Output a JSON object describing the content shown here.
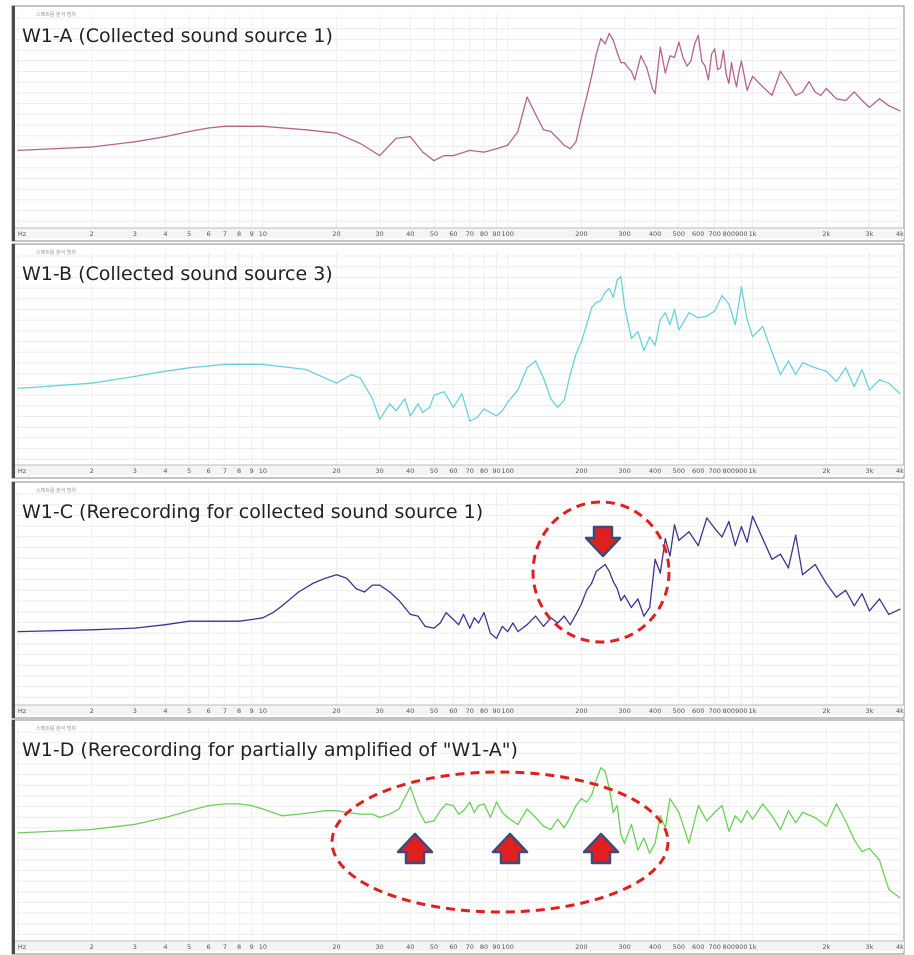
{
  "chart_data": [
    {
      "type": "line",
      "title": "W1-A (Collected sound source 1)",
      "corner_label": "스펙트럼 분석 범위",
      "x_scale": "log",
      "x_unit_label": "Hz",
      "x_ticks": [
        "Hz",
        "2",
        "3",
        "4",
        "5",
        "6",
        "7",
        "8",
        "9",
        "10",
        "20",
        "30",
        "40",
        "50",
        "60",
        "70",
        "80",
        "90",
        "100",
        "200",
        "300",
        "400",
        "500",
        "600",
        "700",
        "800",
        "900",
        "1k",
        "2k",
        "3k",
        "4k"
      ],
      "x_tick_values": [
        1,
        2,
        3,
        4,
        5,
        6,
        7,
        8,
        9,
        10,
        20,
        30,
        40,
        50,
        60,
        70,
        80,
        90,
        100,
        200,
        300,
        400,
        500,
        600,
        700,
        800,
        900,
        1000,
        2000,
        3000,
        4000
      ],
      "xlim": [
        1,
        4000
      ],
      "ylim": [
        -10,
        0
      ],
      "grid": true,
      "color": "#b5648e",
      "series": [
        {
          "x": [
            1,
            2,
            3,
            4,
            5,
            6,
            7,
            8,
            10,
            15,
            20,
            25,
            30,
            35,
            40,
            45,
            50,
            55,
            60,
            70,
            80,
            90,
            95,
            100,
            110,
            120,
            130,
            140,
            150,
            160,
            170,
            180,
            190,
            200,
            210,
            220,
            230,
            240,
            250,
            260,
            270,
            280,
            290,
            300,
            310,
            320,
            330,
            350,
            370,
            390,
            400,
            420,
            440,
            460,
            480,
            500,
            520,
            540,
            560,
            580,
            600,
            620,
            640,
            660,
            680,
            700,
            720,
            740,
            760,
            780,
            800,
            820,
            840,
            860,
            880,
            900,
            950,
            1000,
            1100,
            1200,
            1300,
            1400,
            1500,
            1600,
            1700,
            1800,
            1900,
            2000,
            2200,
            2400,
            2600,
            2800,
            3000,
            3300,
            3600,
            4000
          ],
          "y": [
            -7.0,
            -6.8,
            -6.5,
            -6.2,
            -5.9,
            -5.7,
            -5.6,
            -5.6,
            -5.6,
            -5.8,
            -6.0,
            -6.6,
            -7.3,
            -6.3,
            -6.2,
            -7.1,
            -7.6,
            -7.3,
            -7.3,
            -7.0,
            -7.1,
            -6.9,
            -6.8,
            -6.7,
            -5.9,
            -3.9,
            -4.9,
            -5.8,
            -5.9,
            -6.3,
            -6.7,
            -6.9,
            -6.5,
            -5.1,
            -3.9,
            -2.7,
            -1.4,
            -0.5,
            -0.8,
            -0.2,
            -0.6,
            -1.3,
            -1.9,
            -1.9,
            -2.2,
            -2.4,
            -2.9,
            -1.5,
            -2.2,
            -3.4,
            -3.7,
            -1.0,
            -2.5,
            -1.5,
            -1.6,
            -0.7,
            -1.6,
            -2.1,
            -1.8,
            -0.8,
            -0.3,
            -1.8,
            -2.1,
            -2.9,
            -1.4,
            -1.1,
            -2.3,
            -2.2,
            -1.2,
            -2.6,
            -3.1,
            -1.9,
            -2.7,
            -3.3,
            -2.4,
            -1.8,
            -3.5,
            -2.7,
            -3.3,
            -3.8,
            -2.4,
            -3.1,
            -3.8,
            -3.6,
            -3.0,
            -3.6,
            -3.8,
            -3.4,
            -4.0,
            -4.1,
            -3.6,
            -4.1,
            -4.5,
            -4.0,
            -4.4,
            -4.7
          ]
        }
      ]
    },
    {
      "type": "line",
      "title": "W1-B (Collected sound source 3)",
      "corner_label": "스펙트럼 분석 범위",
      "x_scale": "log",
      "x_unit_label": "Hz",
      "x_ticks": [
        "Hz",
        "2",
        "3",
        "4",
        "5",
        "6",
        "7",
        "8",
        "9",
        "10",
        "20",
        "30",
        "40",
        "50",
        "60",
        "70",
        "80",
        "90",
        "100",
        "200",
        "300",
        "400",
        "500",
        "600",
        "700",
        "800",
        "900",
        "1k",
        "2k",
        "3k",
        "4k"
      ],
      "x_tick_values": [
        1,
        2,
        3,
        4,
        5,
        6,
        7,
        8,
        9,
        10,
        20,
        30,
        40,
        50,
        60,
        70,
        80,
        90,
        100,
        200,
        300,
        400,
        500,
        600,
        700,
        800,
        900,
        1000,
        2000,
        3000,
        4000
      ],
      "xlim": [
        1,
        4000
      ],
      "ylim": [
        -10,
        0
      ],
      "grid": true,
      "color": "#6ad1d9",
      "series": [
        {
          "x": [
            1,
            2,
            3,
            4,
            5,
            6,
            7,
            8,
            10,
            15,
            20,
            23,
            25,
            28,
            30,
            33,
            35,
            38,
            40,
            43,
            45,
            48,
            50,
            55,
            60,
            65,
            70,
            75,
            80,
            90,
            95,
            100,
            110,
            120,
            130,
            140,
            150,
            160,
            170,
            180,
            190,
            200,
            210,
            220,
            230,
            240,
            250,
            260,
            270,
            280,
            290,
            300,
            320,
            340,
            360,
            380,
            400,
            420,
            440,
            460,
            480,
            500,
            550,
            600,
            650,
            700,
            750,
            800,
            850,
            900,
            950,
            1000,
            1100,
            1200,
            1300,
            1400,
            1500,
            1600,
            1800,
            2000,
            2200,
            2400,
            2600,
            2800,
            3000,
            3300,
            3600,
            4000
          ],
          "y": [
            -7.0,
            -6.7,
            -6.3,
            -6.0,
            -5.8,
            -5.7,
            -5.6,
            -5.6,
            -5.6,
            -5.9,
            -6.7,
            -6.2,
            -6.4,
            -7.6,
            -8.8,
            -7.9,
            -8.3,
            -7.6,
            -8.6,
            -7.9,
            -8.4,
            -8.1,
            -7.4,
            -7.2,
            -8.1,
            -7.3,
            -8.9,
            -8.7,
            -8.2,
            -8.6,
            -8.3,
            -7.8,
            -7.1,
            -5.8,
            -5.4,
            -6.4,
            -7.6,
            -8.1,
            -7.7,
            -6.2,
            -5.0,
            -4.3,
            -3.3,
            -2.3,
            -2.0,
            -1.9,
            -1.4,
            -1.2,
            -1.7,
            -0.7,
            -0.5,
            -2.2,
            -4.1,
            -3.7,
            -4.8,
            -4.0,
            -4.5,
            -3.0,
            -2.6,
            -3.3,
            -2.4,
            -3.6,
            -2.6,
            -2.9,
            -2.8,
            -2.5,
            -1.6,
            -2.1,
            -3.3,
            -1.1,
            -3.0,
            -4.0,
            -3.4,
            -4.9,
            -6.2,
            -5.4,
            -6.2,
            -5.5,
            -5.8,
            -6.0,
            -6.6,
            -5.8,
            -6.9,
            -5.9,
            -7.1,
            -6.5,
            -6.7,
            -7.3
          ]
        }
      ]
    },
    {
      "type": "line",
      "title": "W1-C (Rerecording for collected sound source 1)",
      "corner_label": "스펙트럼 분석 범위",
      "x_scale": "log",
      "x_unit_label": "Hz",
      "x_ticks": [
        "Hz",
        "2",
        "3",
        "4",
        "5",
        "6",
        "7",
        "8",
        "9",
        "10",
        "20",
        "30",
        "40",
        "50",
        "60",
        "70",
        "80",
        "90",
        "100",
        "200",
        "300",
        "400",
        "500",
        "600",
        "700",
        "800",
        "900",
        "1k",
        "2k",
        "3k",
        "4k"
      ],
      "x_tick_values": [
        1,
        2,
        3,
        4,
        5,
        6,
        7,
        8,
        9,
        10,
        20,
        30,
        40,
        50,
        60,
        70,
        80,
        90,
        100,
        200,
        300,
        400,
        500,
        600,
        700,
        800,
        900,
        1000,
        2000,
        3000,
        4000
      ],
      "xlim": [
        1,
        4000
      ],
      "ylim": [
        -10,
        0
      ],
      "grid": true,
      "color": "#3e3590",
      "annotations": [
        "dashed red circle",
        "red arrow pointing down"
      ],
      "series": [
        {
          "x": [
            1,
            2,
            3,
            4,
            5,
            6,
            7,
            8,
            9,
            10,
            11,
            12,
            14,
            16,
            18,
            20,
            22,
            24,
            26,
            28,
            30,
            33,
            36,
            40,
            43,
            46,
            50,
            53,
            56,
            60,
            63,
            66,
            70,
            73,
            76,
            80,
            85,
            90,
            95,
            100,
            105,
            110,
            120,
            130,
            140,
            150,
            160,
            170,
            180,
            190,
            200,
            210,
            220,
            230,
            240,
            250,
            260,
            270,
            280,
            290,
            300,
            320,
            340,
            360,
            380,
            400,
            420,
            440,
            460,
            480,
            500,
            550,
            600,
            650,
            700,
            750,
            800,
            850,
            900,
            950,
            1000,
            1100,
            1200,
            1300,
            1400,
            1500,
            1600,
            1800,
            2000,
            2200,
            2400,
            2600,
            2800,
            3000,
            3300,
            3600,
            4000
          ],
          "y": [
            -7.3,
            -7.2,
            -7.1,
            -6.9,
            -6.7,
            -6.7,
            -6.7,
            -6.7,
            -6.6,
            -6.5,
            -6.2,
            -5.8,
            -5.0,
            -4.5,
            -4.2,
            -4.0,
            -4.2,
            -4.8,
            -5.0,
            -4.6,
            -4.6,
            -5.0,
            -5.5,
            -6.3,
            -6.4,
            -7.0,
            -7.1,
            -6.8,
            -6.2,
            -6.6,
            -6.9,
            -6.3,
            -7.1,
            -6.5,
            -6.8,
            -6.2,
            -7.4,
            -7.7,
            -7.0,
            -7.3,
            -6.8,
            -7.3,
            -6.9,
            -6.4,
            -7.0,
            -6.5,
            -6.8,
            -6.4,
            -6.9,
            -6.3,
            -5.7,
            -4.9,
            -4.5,
            -3.8,
            -3.6,
            -3.4,
            -3.8,
            -4.4,
            -4.8,
            -5.5,
            -5.2,
            -5.9,
            -5.4,
            -6.4,
            -5.9,
            -3.1,
            -3.9,
            -1.9,
            -2.9,
            -1.1,
            -2.0,
            -1.5,
            -2.3,
            -0.7,
            -1.3,
            -1.8,
            -0.9,
            -2.3,
            -1.2,
            -2.1,
            -0.6,
            -1.9,
            -3.1,
            -2.8,
            -3.6,
            -1.7,
            -4.0,
            -3.4,
            -4.5,
            -5.3,
            -4.9,
            -5.8,
            -5.1,
            -6.1,
            -5.4,
            -6.3,
            -6.0
          ]
        }
      ]
    },
    {
      "type": "line",
      "title": "W1-D (Rerecording for partially amplified of \"W1-A\")",
      "corner_label": "스펙트럼 분석 범위",
      "x_scale": "log",
      "x_unit_label": "Hz",
      "x_ticks": [
        "Hz",
        "2",
        "3",
        "4",
        "5",
        "6",
        "7",
        "8",
        "9",
        "10",
        "20",
        "30",
        "40",
        "50",
        "60",
        "70",
        "80",
        "90",
        "100",
        "200",
        "300",
        "400",
        "500",
        "600",
        "700",
        "800",
        "900",
        "1k",
        "2k",
        "3k",
        "4k"
      ],
      "x_tick_values": [
        1,
        2,
        3,
        4,
        5,
        6,
        7,
        8,
        9,
        10,
        20,
        30,
        40,
        50,
        60,
        70,
        80,
        90,
        100,
        200,
        300,
        400,
        500,
        600,
        700,
        800,
        900,
        1000,
        2000,
        3000,
        4000
      ],
      "xlim": [
        1,
        4000
      ],
      "ylim": [
        -10,
        0
      ],
      "grid": true,
      "color": "#6ccf5a",
      "annotations": [
        "dashed red ellipse",
        "three red arrows pointing up"
      ],
      "series": [
        {
          "x": [
            1,
            2,
            3,
            4,
            5,
            6,
            7,
            8,
            9,
            10,
            12,
            14,
            16,
            18,
            20,
            22,
            25,
            28,
            30,
            33,
            36,
            40,
            43,
            46,
            50,
            53,
            56,
            60,
            63,
            66,
            70,
            73,
            76,
            80,
            85,
            90,
            95,
            100,
            110,
            120,
            130,
            140,
            150,
            160,
            170,
            180,
            190,
            200,
            210,
            220,
            230,
            240,
            250,
            260,
            270,
            280,
            290,
            300,
            320,
            340,
            360,
            380,
            400,
            420,
            440,
            460,
            480,
            500,
            550,
            600,
            650,
            700,
            750,
            800,
            850,
            900,
            950,
            1000,
            1100,
            1200,
            1300,
            1400,
            1500,
            1600,
            1800,
            2000,
            2200,
            2400,
            2600,
            2800,
            3000,
            3300,
            3600,
            4000
          ],
          "y": [
            -5.2,
            -5.0,
            -4.7,
            -4.3,
            -3.9,
            -3.6,
            -3.5,
            -3.5,
            -3.6,
            -3.8,
            -4.2,
            -4.1,
            -4.0,
            -3.9,
            -3.9,
            -4.0,
            -4.1,
            -4.1,
            -4.3,
            -4.1,
            -3.8,
            -2.5,
            -3.8,
            -4.6,
            -4.5,
            -3.9,
            -3.5,
            -3.6,
            -4.1,
            -3.9,
            -3.4,
            -4.0,
            -3.6,
            -3.5,
            -4.3,
            -3.4,
            -4.0,
            -4.3,
            -4.7,
            -3.8,
            -4.3,
            -4.8,
            -5.0,
            -4.4,
            -4.9,
            -4.3,
            -3.6,
            -3.2,
            -3.4,
            -3.0,
            -2.1,
            -1.4,
            -1.6,
            -2.6,
            -4.0,
            -3.6,
            -5.3,
            -5.8,
            -4.7,
            -6.2,
            -5.5,
            -6.4,
            -5.8,
            -4.2,
            -4.9,
            -3.2,
            -3.6,
            -4.0,
            -5.8,
            -3.6,
            -4.5,
            -4.0,
            -3.6,
            -5.1,
            -4.2,
            -4.6,
            -3.9,
            -4.4,
            -3.5,
            -4.2,
            -5.0,
            -3.9,
            -4.6,
            -4.0,
            -4.3,
            -4.8,
            -3.5,
            -4.5,
            -5.6,
            -6.3,
            -6.1,
            -6.8,
            -8.5,
            -9.0
          ]
        }
      ]
    }
  ]
}
